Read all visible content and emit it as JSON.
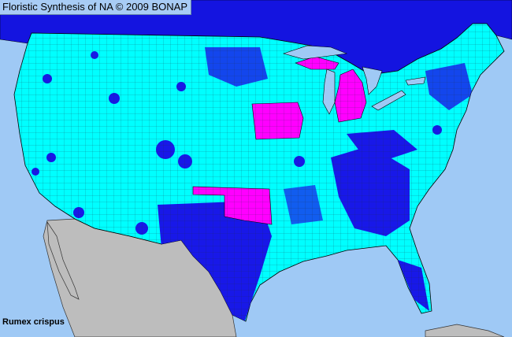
{
  "header": {
    "title": "Floristic Synthesis of NA © 2009 BONAP"
  },
  "species": "Rumex crispus",
  "map": {
    "region": "Contiguous United States",
    "colors": {
      "ocean": "#9fc9f5",
      "canada": "#1414e0",
      "mexico": "#bdbdbd",
      "county_present": "#00ffff",
      "county_blue": "#1818e8",
      "state_highlight": "#ff00ff",
      "lakes": "#9fc9f5"
    },
    "highlighted_states": [
      "Iowa",
      "Michigan",
      "Oklahoma"
    ]
  }
}
